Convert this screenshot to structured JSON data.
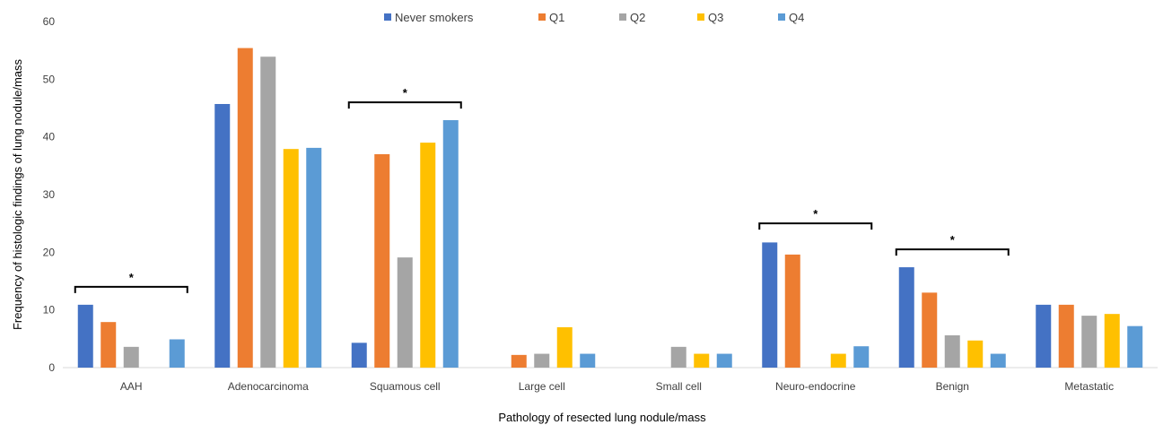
{
  "chart_data": {
    "type": "bar",
    "xlabel": "Pathology of resected lung nodule/mass",
    "ylabel": "Frequency of histologic findings of lung nodule/mass",
    "ylim": [
      0,
      60
    ],
    "yticks": [
      0,
      10,
      20,
      30,
      40,
      50,
      60
    ],
    "grid": false,
    "legend_position": "top",
    "categories": [
      "AAH",
      "Adenocarcinoma",
      "Squamous cell",
      "Large cell",
      "Small cell",
      "Neuro-endocrine",
      "Benign",
      "Metastatic"
    ],
    "series": [
      {
        "name": "Never smokers",
        "color": "#4472C4",
        "values": [
          10.9,
          45.7,
          4.3,
          0,
          0,
          21.7,
          17.4,
          10.9
        ]
      },
      {
        "name": "Q1",
        "color": "#ED7D31",
        "values": [
          7.9,
          55.4,
          37.0,
          2.2,
          0,
          19.6,
          13.0,
          10.9
        ]
      },
      {
        "name": "Q2",
        "color": "#A5A5A5",
        "values": [
          3.6,
          53.9,
          19.1,
          2.4,
          3.6,
          0,
          5.6,
          9.0
        ]
      },
      {
        "name": "Q3",
        "color": "#FFC000",
        "values": [
          0,
          37.9,
          39.0,
          7.0,
          2.4,
          2.4,
          4.7,
          9.3
        ]
      },
      {
        "name": "Q4",
        "color": "#5B9BD5",
        "values": [
          4.9,
          38.1,
          42.9,
          2.4,
          2.4,
          3.7,
          2.4,
          7.2
        ]
      }
    ],
    "significance_brackets": [
      {
        "category": "AAH",
        "label": "*",
        "level": 14
      },
      {
        "category": "Squamous cell",
        "label": "*",
        "level": 46
      },
      {
        "category": "Neuro-endocrine",
        "label": "*",
        "level": 25
      },
      {
        "category": "Benign",
        "label": "*",
        "level": 20.5
      }
    ]
  }
}
